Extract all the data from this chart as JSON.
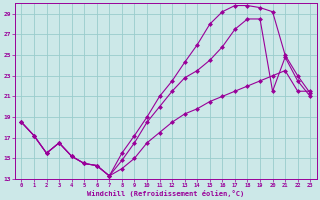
{
  "xlabel": "Windchill (Refroidissement éolien,°C)",
  "bg_color": "#cce8e8",
  "grid_color": "#99cccc",
  "line_color": "#990099",
  "xlim": [
    -0.5,
    23.5
  ],
  "ylim": [
    13,
    30
  ],
  "yticks": [
    13,
    15,
    17,
    19,
    21,
    23,
    25,
    27,
    29
  ],
  "xticks": [
    0,
    1,
    2,
    3,
    4,
    5,
    6,
    7,
    8,
    9,
    10,
    11,
    12,
    13,
    14,
    15,
    16,
    17,
    18,
    19,
    20,
    21,
    22,
    23
  ],
  "line1_x": [
    0,
    1,
    2,
    3,
    4,
    5,
    6,
    7,
    8,
    9,
    10,
    11,
    12,
    13,
    14,
    15,
    16,
    17,
    18,
    19,
    20,
    21,
    22,
    23
  ],
  "line1_y": [
    18.5,
    17.2,
    15.5,
    16.5,
    15.2,
    14.5,
    14.3,
    13.3,
    15.5,
    17.2,
    19.0,
    21.0,
    22.5,
    24.3,
    26.0,
    28.0,
    29.2,
    29.8,
    29.8,
    29.6,
    29.2,
    25.0,
    23.0,
    21.3
  ],
  "line2_x": [
    0,
    1,
    2,
    3,
    4,
    5,
    6,
    7,
    8,
    9,
    10,
    11,
    12,
    13,
    14,
    15,
    16,
    17,
    18,
    19,
    20,
    21,
    22,
    23
  ],
  "line2_y": [
    18.5,
    17.2,
    15.5,
    16.5,
    15.2,
    14.5,
    14.3,
    13.3,
    14.8,
    16.5,
    18.5,
    20.0,
    21.5,
    22.8,
    23.5,
    24.5,
    25.8,
    27.5,
    28.5,
    28.5,
    21.5,
    24.8,
    22.5,
    21.0
  ],
  "line3_x": [
    0,
    1,
    2,
    3,
    4,
    5,
    6,
    7,
    8,
    9,
    10,
    11,
    12,
    13,
    14,
    15,
    16,
    17,
    18,
    19,
    20,
    21,
    22,
    23
  ],
  "line3_y": [
    18.5,
    17.2,
    15.5,
    16.5,
    15.2,
    14.5,
    14.3,
    13.3,
    14.0,
    15.0,
    16.5,
    17.5,
    18.5,
    19.3,
    19.8,
    20.5,
    21.0,
    21.5,
    22.0,
    22.5,
    23.0,
    23.5,
    21.5,
    21.5
  ]
}
